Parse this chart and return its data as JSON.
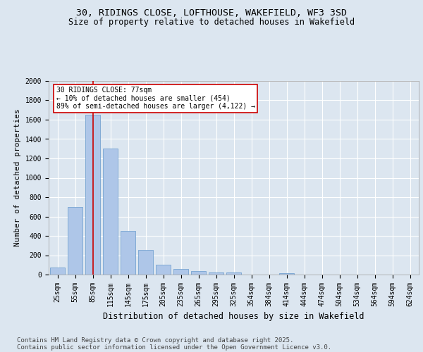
{
  "title_line1": "30, RIDINGS CLOSE, LOFTHOUSE, WAKEFIELD, WF3 3SD",
  "title_line2": "Size of property relative to detached houses in Wakefield",
  "xlabel": "Distribution of detached houses by size in Wakefield",
  "ylabel": "Number of detached properties",
  "categories": [
    "25sqm",
    "55sqm",
    "85sqm",
    "115sqm",
    "145sqm",
    "175sqm",
    "205sqm",
    "235sqm",
    "265sqm",
    "295sqm",
    "325sqm",
    "354sqm",
    "384sqm",
    "414sqm",
    "444sqm",
    "474sqm",
    "504sqm",
    "534sqm",
    "564sqm",
    "594sqm",
    "624sqm"
  ],
  "values": [
    70,
    700,
    1650,
    1300,
    450,
    255,
    100,
    55,
    35,
    25,
    20,
    0,
    0,
    15,
    0,
    0,
    0,
    0,
    0,
    0,
    0
  ],
  "bar_color": "#aec6e8",
  "bar_edge_color": "#6699cc",
  "vline_x": 2,
  "vline_color": "#cc0000",
  "annotation_text": "30 RIDINGS CLOSE: 77sqm\n← 10% of detached houses are smaller (454)\n89% of semi-detached houses are larger (4,122) →",
  "annotation_box_color": "#ffffff",
  "annotation_box_edge_color": "#cc0000",
  "ylim": [
    0,
    2000
  ],
  "yticks": [
    0,
    200,
    400,
    600,
    800,
    1000,
    1200,
    1400,
    1600,
    1800,
    2000
  ],
  "background_color": "#dce6f0",
  "plot_bg_color": "#dce6f0",
  "grid_color": "#ffffff",
  "footer_line1": "Contains HM Land Registry data © Crown copyright and database right 2025.",
  "footer_line2": "Contains public sector information licensed under the Open Government Licence v3.0.",
  "title_fontsize": 9.5,
  "subtitle_fontsize": 8.5,
  "axis_label_fontsize": 8,
  "tick_fontsize": 7,
  "footer_fontsize": 6.5,
  "annotation_fontsize": 7
}
